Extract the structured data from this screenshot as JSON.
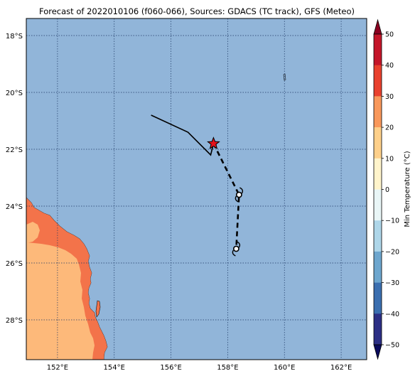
{
  "title": "Forecast of 2022010106 (f060-066), Sources: GDACS (TC track), GFS (Meteo)",
  "lat_labels": [
    "18°S",
    "20°S",
    "22°S",
    "24°S",
    "26°S",
    "28°S"
  ],
  "lon_labels": [
    "152°E",
    "154°E",
    "156°E",
    "158°E",
    "160°E",
    "162°E"
  ],
  "colorbar": {
    "label": "Min Temperature (°C)",
    "ticks": [
      "50",
      "40",
      "30",
      "20",
      "10",
      "0",
      "−10",
      "−20",
      "−30",
      "−40",
      "−50"
    ],
    "colors": [
      "#8b0021",
      "#c4162a",
      "#e9412e",
      "#f9985b",
      "#fed08a",
      "#fff4cb",
      "#e9f6f7",
      "#aed6e9",
      "#6da6ce",
      "#3b6fb0",
      "#2c2f85",
      "#0a0a5c"
    ]
  },
  "colors": {
    "ocean": "#91b5d9",
    "land_warm": "#fdb97a",
    "land_hot": "#f3734a",
    "track": "#000000",
    "current_position": "#e4121b"
  },
  "track": {
    "past_lonlat": [
      [
        155.3,
        -20.8
      ],
      [
        156.6,
        -21.4
      ],
      [
        157.4,
        -22.2
      ],
      [
        157.5,
        -21.8
      ]
    ],
    "forecast_lonlat": [
      [
        157.5,
        -21.8
      ],
      [
        158.4,
        -23.6
      ],
      [
        158.3,
        -25.5
      ]
    ],
    "current_lonlat": [
      157.5,
      -21.8
    ],
    "forecast_points_lonlat": [
      [
        158.4,
        -23.6
      ],
      [
        158.3,
        -25.5
      ]
    ]
  }
}
